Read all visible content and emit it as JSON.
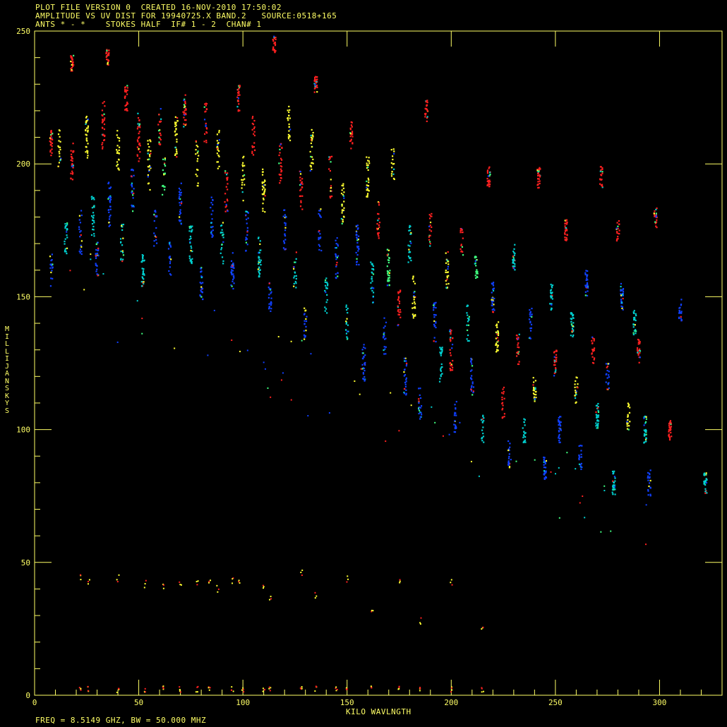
{
  "header": {
    "line1": "PLOT FILE VERSION 0  CREATED 16-NOV-2010 17:50:02",
    "line2": "AMPLITUDE VS UV DIST FOR 19940725.X BAND.2   SOURCE:0518+165",
    "line3": "ANTS * - *    STOKES HALF  IF# 1 - 2  CHAN# 1"
  },
  "footer": "FREQ = 8.5149 GHZ, BW = 50.000 MHZ",
  "colors": {
    "frame": "#ffff66",
    "background": "#000000",
    "series": [
      "#ff2020",
      "#ffff30",
      "#40ff80",
      "#00d0d0",
      "#1040ff"
    ]
  },
  "chart_data": {
    "type": "scatter",
    "xlabel": "KILO WAVLNGTH",
    "ylabel": "MILLIJANSKYS",
    "xlim": [
      0,
      330
    ],
    "ylim": [
      0,
      250
    ],
    "xticks": [
      "0",
      "50",
      "100",
      "150",
      "200",
      "250",
      "300"
    ],
    "yticks": [
      "0",
      "50",
      "100",
      "150",
      "200",
      "250"
    ],
    "grid": false,
    "clusters": [
      [
        8,
        208,
        5,
        "r"
      ],
      [
        8,
        160,
        6,
        "b"
      ],
      [
        12,
        205,
        8,
        "y"
      ],
      [
        15,
        172,
        6,
        "c"
      ],
      [
        18,
        200,
        8,
        "r"
      ],
      [
        22,
        175,
        10,
        "b"
      ],
      [
        18,
        238,
        3,
        "r"
      ],
      [
        25,
        210,
        8,
        "y"
      ],
      [
        28,
        180,
        8,
        "c"
      ],
      [
        30,
        165,
        7,
        "b"
      ],
      [
        33,
        215,
        10,
        "r"
      ],
      [
        35,
        240,
        3,
        "r"
      ],
      [
        36,
        185,
        9,
        "b"
      ],
      [
        40,
        205,
        8,
        "y"
      ],
      [
        42,
        170,
        8,
        "c"
      ],
      [
        44,
        225,
        5,
        "r"
      ],
      [
        47,
        190,
        8,
        "b"
      ],
      [
        50,
        210,
        9,
        "r"
      ],
      [
        52,
        160,
        6,
        "c"
      ],
      [
        55,
        200,
        10,
        "y"
      ],
      [
        58,
        175,
        8,
        "b"
      ],
      [
        60,
        215,
        8,
        "r"
      ],
      [
        62,
        195,
        8,
        "g"
      ],
      [
        65,
        165,
        7,
        "b"
      ],
      [
        68,
        210,
        8,
        "y"
      ],
      [
        70,
        185,
        8,
        "b"
      ],
      [
        72,
        220,
        6,
        "r"
      ],
      [
        75,
        170,
        8,
        "c"
      ],
      [
        78,
        200,
        9,
        "y"
      ],
      [
        80,
        155,
        6,
        "b"
      ],
      [
        82,
        215,
        8,
        "r"
      ],
      [
        85,
        180,
        8,
        "b"
      ],
      [
        88,
        205,
        8,
        "y"
      ],
      [
        90,
        170,
        8,
        "c"
      ],
      [
        92,
        190,
        8,
        "r"
      ],
      [
        95,
        160,
        7,
        "b"
      ],
      [
        98,
        225,
        6,
        "r"
      ],
      [
        100,
        195,
        9,
        "y"
      ],
      [
        102,
        175,
        8,
        "b"
      ],
      [
        105,
        210,
        8,
        "r"
      ],
      [
        108,
        165,
        8,
        "c"
      ],
      [
        110,
        190,
        9,
        "y"
      ],
      [
        113,
        150,
        6,
        "b"
      ],
      [
        115,
        245,
        3,
        "r"
      ],
      [
        118,
        200,
        8,
        "r"
      ],
      [
        120,
        175,
        8,
        "b"
      ],
      [
        122,
        215,
        7,
        "y"
      ],
      [
        125,
        160,
        8,
        "c"
      ],
      [
        128,
        190,
        8,
        "r"
      ],
      [
        130,
        140,
        6,
        "b"
      ],
      [
        133,
        205,
        8,
        "y"
      ],
      [
        135,
        230,
        3,
        "r"
      ],
      [
        137,
        175,
        8,
        "b"
      ],
      [
        140,
        150,
        7,
        "c"
      ],
      [
        142,
        195,
        8,
        "r"
      ],
      [
        145,
        165,
        8,
        "b"
      ],
      [
        148,
        185,
        8,
        "y"
      ],
      [
        150,
        140,
        7,
        "c"
      ],
      [
        152,
        210,
        6,
        "r"
      ],
      [
        155,
        170,
        8,
        "b"
      ],
      [
        158,
        125,
        7,
        "b"
      ],
      [
        160,
        195,
        8,
        "y"
      ],
      [
        162,
        155,
        8,
        "c"
      ],
      [
        165,
        180,
        8,
        "r"
      ],
      [
        168,
        135,
        7,
        "b"
      ],
      [
        170,
        160,
        8,
        "g"
      ],
      [
        172,
        200,
        6,
        "y"
      ],
      [
        175,
        145,
        8,
        "r"
      ],
      [
        178,
        120,
        7,
        "b"
      ],
      [
        180,
        170,
        7,
        "c"
      ],
      [
        182,
        150,
        8,
        "y"
      ],
      [
        185,
        110,
        6,
        "b"
      ],
      [
        188,
        220,
        4,
        "r"
      ],
      [
        190,
        175,
        7,
        "r"
      ],
      [
        192,
        140,
        8,
        "b"
      ],
      [
        195,
        125,
        7,
        "c"
      ],
      [
        198,
        160,
        7,
        "y"
      ],
      [
        200,
        130,
        8,
        "r"
      ],
      [
        202,
        105,
        6,
        "b"
      ],
      [
        205,
        170,
        6,
        "r"
      ],
      [
        208,
        140,
        7,
        "c"
      ],
      [
        210,
        120,
        7,
        "b"
      ],
      [
        212,
        160,
        6,
        "g"
      ],
      [
        215,
        100,
        6,
        "c"
      ],
      [
        218,
        195,
        4,
        "r"
      ],
      [
        220,
        150,
        6,
        "b"
      ],
      [
        222,
        135,
        6,
        "y"
      ],
      [
        225,
        110,
        6,
        "r"
      ],
      [
        228,
        90,
        6,
        "b"
      ],
      [
        230,
        165,
        5,
        "c"
      ],
      [
        232,
        130,
        6,
        "r"
      ],
      [
        235,
        100,
        5,
        "c"
      ],
      [
        238,
        140,
        6,
        "b"
      ],
      [
        240,
        115,
        5,
        "y"
      ],
      [
        242,
        195,
        4,
        "r"
      ],
      [
        245,
        85,
        5,
        "b"
      ],
      [
        248,
        150,
        5,
        "c"
      ],
      [
        250,
        125,
        5,
        "r"
      ],
      [
        252,
        100,
        5,
        "b"
      ],
      [
        255,
        175,
        4,
        "r"
      ],
      [
        258,
        140,
        5,
        "c"
      ],
      [
        260,
        115,
        5,
        "y"
      ],
      [
        262,
        90,
        5,
        "b"
      ],
      [
        265,
        155,
        5,
        "b"
      ],
      [
        268,
        130,
        5,
        "r"
      ],
      [
        270,
        105,
        5,
        "c"
      ],
      [
        272,
        195,
        4,
        "r"
      ],
      [
        275,
        120,
        5,
        "b"
      ],
      [
        278,
        80,
        5,
        "c"
      ],
      [
        280,
        175,
        4,
        "r"
      ],
      [
        282,
        150,
        5,
        "b"
      ],
      [
        285,
        105,
        5,
        "y"
      ],
      [
        288,
        140,
        5,
        "c"
      ],
      [
        290,
        130,
        5,
        "r"
      ],
      [
        293,
        100,
        5,
        "c"
      ],
      [
        295,
        80,
        5,
        "b"
      ],
      [
        298,
        180,
        4,
        "r"
      ],
      [
        305,
        100,
        4,
        "r"
      ],
      [
        310,
        145,
        4,
        "b"
      ],
      [
        322,
        80,
        4,
        "c"
      ]
    ],
    "low_points": [
      [
        22,
        45
      ],
      [
        26,
        43
      ],
      [
        40,
        44
      ],
      [
        53,
        42
      ],
      [
        62,
        41
      ],
      [
        70,
        43
      ],
      [
        78,
        42
      ],
      [
        84,
        43
      ],
      [
        88,
        40
      ],
      [
        95,
        43
      ],
      [
        98,
        42
      ],
      [
        110,
        41
      ],
      [
        113,
        36
      ],
      [
        128,
        46
      ],
      [
        135,
        38
      ],
      [
        150,
        44
      ],
      [
        162,
        32
      ],
      [
        175,
        43
      ],
      [
        185,
        28
      ],
      [
        200,
        43
      ],
      [
        215,
        26
      ]
    ],
    "zero_points": [
      22,
      26,
      40,
      53,
      62,
      70,
      78,
      84,
      95,
      100,
      110,
      113,
      128,
      135,
      145,
      150,
      162,
      175,
      185,
      200,
      215
    ]
  }
}
